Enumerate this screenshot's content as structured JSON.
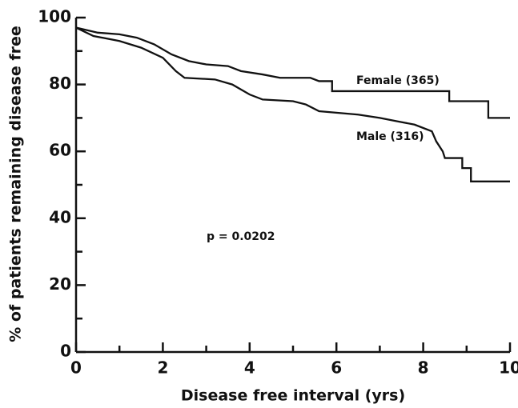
{
  "chart_data": {
    "type": "line",
    "xlabel": "Disease free interval (yrs)",
    "ylabel": "% of patients remaining disease free",
    "xlim": [
      0,
      10
    ],
    "xticks": [
      0,
      2,
      4,
      6,
      8,
      10
    ],
    "xminor": [
      1,
      3,
      5,
      7,
      9
    ],
    "ylim": [
      0,
      100
    ],
    "yticks": [
      0,
      20,
      40,
      60,
      80,
      100
    ],
    "yminor": [
      10,
      30,
      50,
      70,
      90
    ],
    "grid": false,
    "series": [
      {
        "name": "Female (365)",
        "color": "#111111",
        "x": [
          0,
          0.5,
          1,
          1.4,
          1.8,
          2.2,
          2.6,
          3,
          3.5,
          3.8,
          4.3,
          4.7,
          5.4,
          5.6,
          5.9,
          5.9,
          8.6,
          8.6,
          9.5,
          9.5,
          10
        ],
        "values": [
          97,
          95.5,
          95,
          94,
          92,
          89,
          87,
          86,
          85.5,
          84,
          83,
          82,
          82,
          81,
          81,
          78,
          78,
          75,
          75,
          70,
          70
        ]
      },
      {
        "name": "Male (316)",
        "color": "#111111",
        "x": [
          0,
          0.4,
          1,
          1.5,
          2,
          2.3,
          2.5,
          3.2,
          3.6,
          4,
          4.3,
          5,
          5.3,
          5.6,
          6.5,
          7,
          7.4,
          7.8,
          8.2,
          8.3,
          8.45,
          8.5,
          8.9,
          8.9,
          9.1,
          9.1,
          10
        ],
        "values": [
          97,
          94.5,
          93,
          91,
          88,
          84,
          82,
          81.5,
          80,
          77,
          75.5,
          75,
          74,
          72,
          71,
          70,
          69,
          68,
          66,
          63,
          60,
          58,
          58,
          55,
          55,
          51,
          51
        ]
      }
    ],
    "annotations": [
      "p = 0.0202"
    ]
  }
}
